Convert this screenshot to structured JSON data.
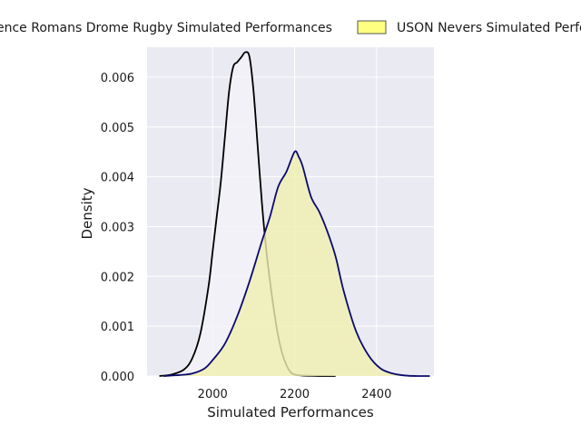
{
  "chart_data": {
    "type": "area",
    "title": "",
    "xlabel": "Simulated Performances",
    "ylabel": "Density",
    "xlim": [
      1840,
      2540
    ],
    "ylim": [
      0,
      0.0066
    ],
    "x_ticks": [
      2000,
      2200,
      2400
    ],
    "x_tick_labels": [
      "2000",
      "2200",
      "2400"
    ],
    "y_ticks": [
      0,
      0.001,
      0.002,
      0.003,
      0.004,
      0.005,
      0.006
    ],
    "y_tick_labels": [
      "0.000",
      "0.001",
      "0.002",
      "0.003",
      "0.004",
      "0.005",
      "0.006"
    ],
    "grid": true,
    "legend_placement": "top, above plot (clipped at both edges)",
    "series": [
      {
        "name": "Valence Romans Drome Rugby Simulated Performances",
        "legend_visible_text": "ence Romans Drome Rugby Simulated Performances",
        "line_color": "#000000",
        "fill_color": "#f2f2f7",
        "x": [
          1870,
          1900,
          1930,
          1950,
          1970,
          1990,
          2000,
          2010,
          2020,
          2030,
          2040,
          2050,
          2060,
          2070,
          2080,
          2090,
          2100,
          2110,
          2120,
          2130,
          2140,
          2150,
          2160,
          2170,
          2180,
          2190,
          2200,
          2220,
          2250,
          2280,
          2300
        ],
        "y": [
          0,
          3e-05,
          0.00013,
          0.00035,
          0.00085,
          0.0018,
          0.0025,
          0.0032,
          0.0039,
          0.0048,
          0.0057,
          0.0062,
          0.0063,
          0.0064,
          0.0065,
          0.0064,
          0.0057,
          0.0046,
          0.0035,
          0.0026,
          0.0019,
          0.0013,
          0.0008,
          0.00045,
          0.00022,
          8e-05,
          3e-05,
          1e-05,
          3e-06,
          0,
          0
        ]
      },
      {
        "name": "USON Nevers Simulated Performances",
        "legend_visible_text": "USON Nevers Simulated Perfo",
        "line_color": "#0a0a6e",
        "fill_color": "#f0f0b0",
        "legend_swatch_color": "#ffff80",
        "x": [
          1880,
          1920,
          1950,
          1980,
          2000,
          2030,
          2060,
          2090,
          2120,
          2140,
          2160,
          2180,
          2200,
          2210,
          2220,
          2240,
          2260,
          2280,
          2300,
          2320,
          2350,
          2380,
          2410,
          2440,
          2470,
          2500,
          2530
        ],
        "y": [
          0,
          2e-05,
          5e-05,
          0.00015,
          0.00032,
          0.00065,
          0.0012,
          0.0019,
          0.0027,
          0.0032,
          0.0038,
          0.0041,
          0.0045,
          0.0044,
          0.0042,
          0.0036,
          0.0033,
          0.0029,
          0.0024,
          0.0017,
          0.0009,
          0.00042,
          0.00015,
          5e-05,
          1e-05,
          0,
          0
        ]
      }
    ]
  }
}
